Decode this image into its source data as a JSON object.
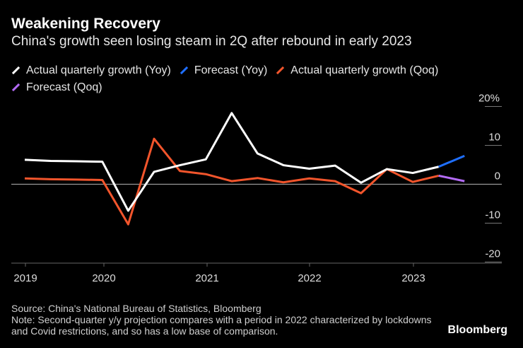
{
  "title": "Weakening Recovery",
  "subtitle": "China's growth seen losing steam in 2Q after rebound in early 2023",
  "chart_data": {
    "type": "line",
    "x": [
      "2019-Q1",
      "2019-Q2",
      "2019-Q3",
      "2019-Q4",
      "2020-Q1",
      "2020-Q2",
      "2020-Q3",
      "2020-Q4",
      "2021-Q1",
      "2021-Q2",
      "2021-Q3",
      "2021-Q4",
      "2022-Q1",
      "2022-Q2",
      "2022-Q3",
      "2022-Q4",
      "2023-Q1",
      "2023-Q2"
    ],
    "series": [
      {
        "name": "Actual quarterly growth (Yoy)",
        "color": "#ffffff",
        "values": [
          6.3,
          6.0,
          5.9,
          5.8,
          -6.8,
          3.2,
          4.9,
          6.4,
          18.3,
          7.9,
          4.9,
          4.0,
          4.8,
          0.4,
          3.9,
          2.9,
          4.5,
          null
        ]
      },
      {
        "name": "Forecast (Yoy)",
        "color": "#1f6fff",
        "values": [
          null,
          null,
          null,
          null,
          null,
          null,
          null,
          null,
          null,
          null,
          null,
          null,
          null,
          null,
          null,
          null,
          4.5,
          7.3
        ]
      },
      {
        "name": "Actual quarterly growth (Qoq)",
        "color": "#f2552c",
        "values": [
          1.5,
          1.3,
          1.2,
          1.1,
          -10.3,
          11.7,
          3.4,
          2.6,
          0.8,
          1.6,
          0.5,
          1.5,
          0.8,
          -2.3,
          3.9,
          0.6,
          2.2,
          null
        ]
      },
      {
        "name": "Forecast (Qoq)",
        "color": "#b36bf5",
        "values": [
          null,
          null,
          null,
          null,
          null,
          null,
          null,
          null,
          null,
          null,
          null,
          null,
          null,
          null,
          null,
          null,
          2.2,
          0.8
        ]
      }
    ],
    "x_tick_labels": [
      "2019",
      "2020",
      "2021",
      "2022",
      "2023"
    ],
    "y_ticks": [
      20,
      10,
      0,
      -10,
      -20
    ],
    "y_tick_labels": [
      "20%",
      "10",
      "0",
      "-10",
      "-20"
    ],
    "ylim": [
      -20,
      20
    ],
    "legend": "top"
  },
  "source": "Source: China's National Bureau of Statistics, Bloomberg",
  "note": "Note: Second-quarter y/y projection compares with a period in 2022 characterized by lockdowns and Covid restrictions, and so has a low base of comparison.",
  "brand": "Bloomberg"
}
